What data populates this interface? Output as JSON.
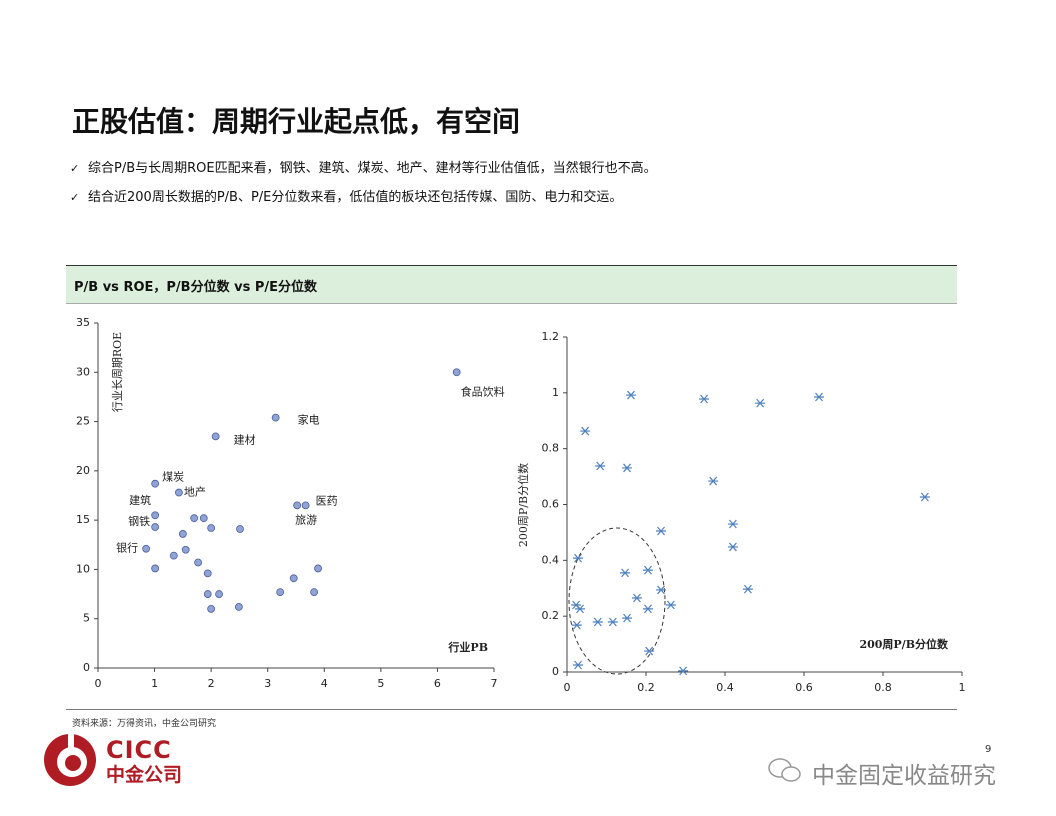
{
  "title": "正股估值：周期行业起点低，有空间",
  "bullets": [
    "综合P/B与长周期ROE匹配来看，钢铁、建筑、煤炭、地产、建材等行业估值低，当然银行也不高。",
    "结合近200周长数据的P/B、P/E分位数来看，低估值的板块还包括传媒、国防、电力和交运。"
  ],
  "panel_title": "P/B vs ROE，P/B分位数 vs P/E分位数",
  "source": "资料来源：万得资讯，中金公司研究",
  "logo": {
    "en": "CICC",
    "cn": "中金公司"
  },
  "watermark": "中金固定收益研究",
  "page_number": "9",
  "chart_data": [
    {
      "type": "scatter",
      "marker": "circle",
      "color": "#8fa3d6",
      "edge_color": "#4a5f9a",
      "xlabel": "行业PB",
      "ylabel": "行业长周期ROE",
      "x": [
        6.34,
        3.14,
        2.08,
        1.01,
        1.43,
        1.01,
        1.01,
        0.85,
        3.67,
        3.52,
        1.01,
        1.34,
        1.55,
        1.5,
        1.7,
        1.87,
        2.0,
        2.51,
        1.77,
        1.94,
        1.94,
        2.14,
        2.0,
        2.49,
        3.22,
        3.46,
        3.82,
        3.89
      ],
      "values": [
        30.0,
        25.4,
        23.5,
        18.7,
        17.8,
        15.5,
        14.3,
        12.1,
        16.5,
        16.5,
        10.1,
        11.4,
        12.0,
        13.6,
        15.2,
        15.2,
        14.2,
        14.1,
        10.7,
        9.6,
        7.5,
        7.5,
        6.0,
        6.2,
        7.7,
        9.1,
        7.7,
        10.1
      ],
      "point_labels": [
        "食品饮料",
        "家电",
        "建材",
        "煤炭",
        "地产",
        "建筑",
        "钢铁",
        "银行",
        "医药",
        "旅游",
        null,
        null,
        null,
        null,
        null,
        null,
        null,
        null,
        null,
        null,
        null,
        null,
        null,
        null,
        null,
        null,
        null,
        null
      ],
      "xlim": [
        0,
        7
      ],
      "xticks": [
        0,
        1,
        2,
        3,
        4,
        5,
        6,
        7
      ],
      "ylim": [
        0,
        35
      ],
      "yticks": [
        0,
        5,
        10,
        15,
        20,
        25,
        30,
        35
      ]
    },
    {
      "type": "scatter",
      "marker": "asterisk",
      "color": "#4f81bd",
      "xlabel": "200周P/B分位数",
      "ylabel": "200周P/B分位数",
      "x": [
        0.028,
        0.023,
        0.033,
        0.025,
        0.028,
        0.046,
        0.084,
        0.078,
        0.116,
        0.152,
        0.162,
        0.147,
        0.152,
        0.177,
        0.205,
        0.205,
        0.208,
        0.238,
        0.238,
        0.263,
        0.294,
        0.347,
        0.37,
        0.42,
        0.42,
        0.458,
        0.489,
        0.638,
        0.906
      ],
      "values": [
        0.408,
        0.24,
        0.226,
        0.168,
        0.025,
        0.863,
        0.738,
        0.179,
        0.179,
        0.731,
        0.992,
        0.355,
        0.193,
        0.265,
        0.365,
        0.226,
        0.075,
        0.505,
        0.294,
        0.24,
        0.004,
        0.978,
        0.684,
        0.53,
        0.448,
        0.297,
        0.963,
        0.985,
        0.627
      ],
      "xlim": [
        0,
        1
      ],
      "xticks": [
        0,
        0.2,
        0.4,
        0.6,
        0.8,
        1
      ],
      "ylim": [
        0,
        1.2
      ],
      "yticks": [
        0,
        0.2,
        0.4,
        0.6,
        0.8,
        1,
        1.2
      ]
    }
  ]
}
